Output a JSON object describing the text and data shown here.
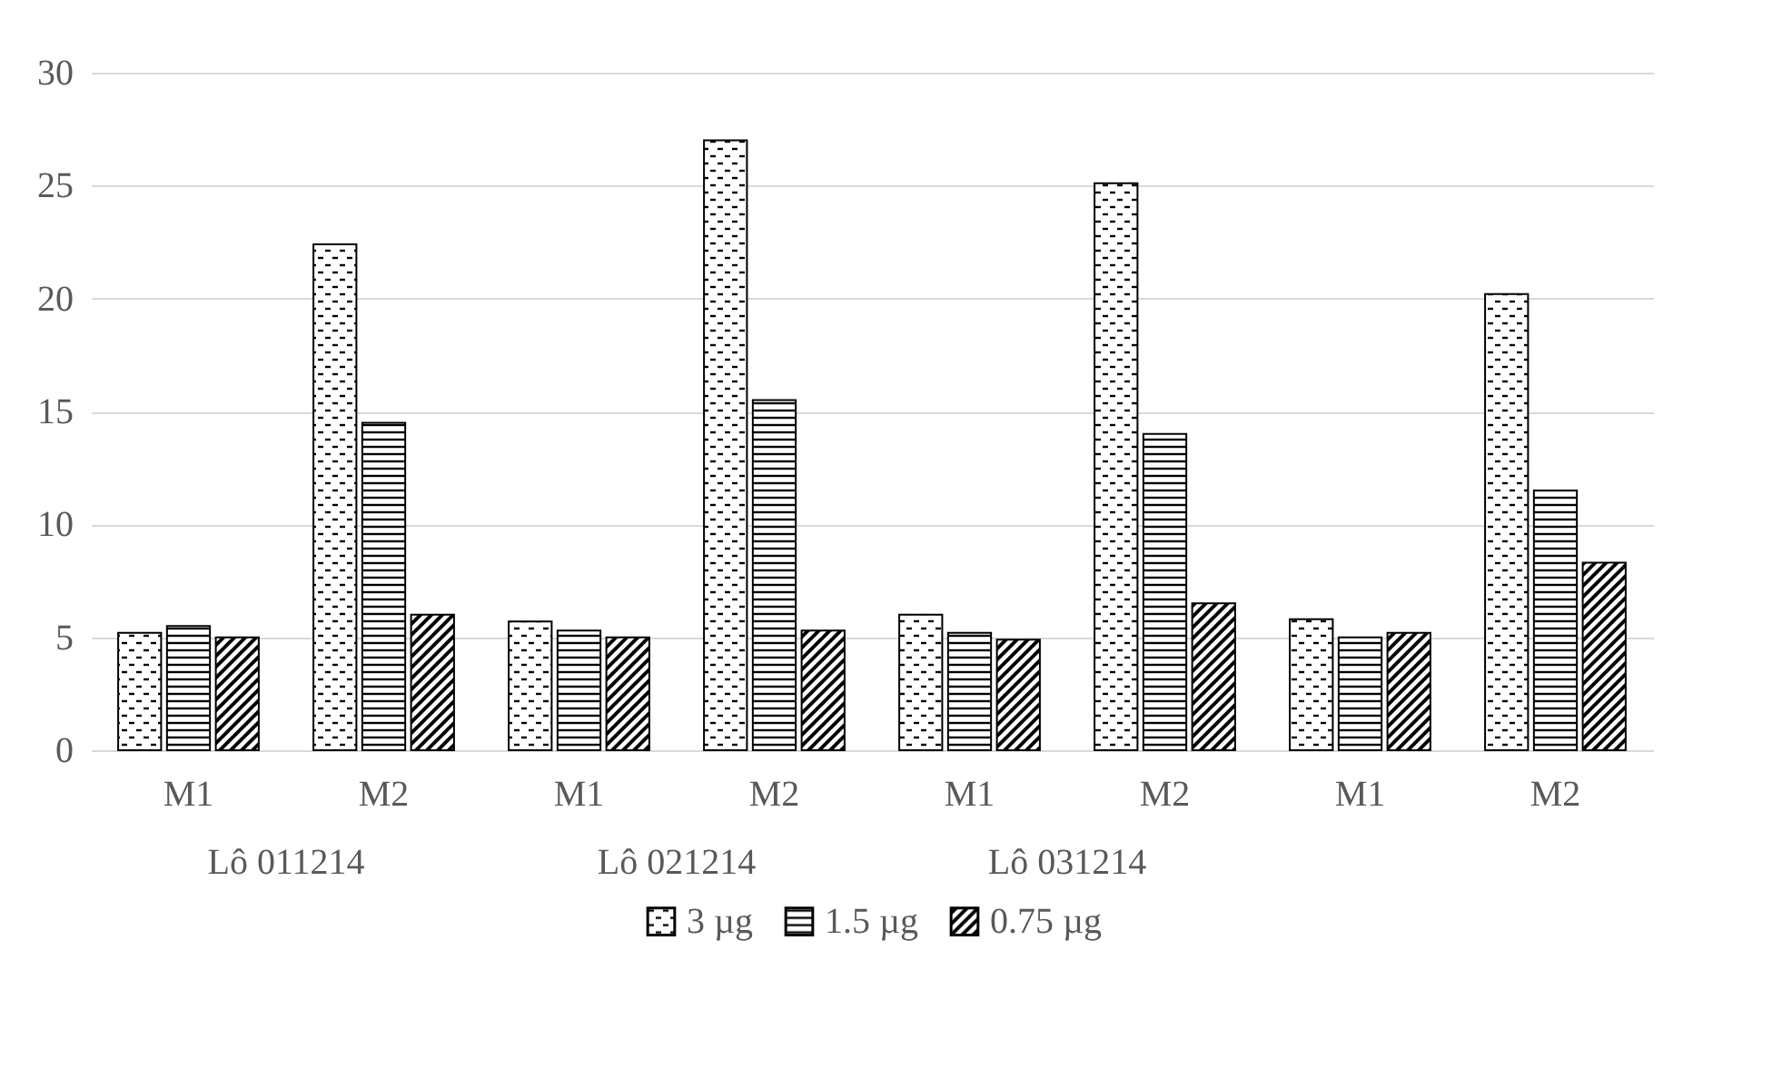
{
  "chart_data": {
    "type": "bar",
    "categories": [
      "M1",
      "M2",
      "M1",
      "M2",
      "M1",
      "M2",
      "M1",
      "M2"
    ],
    "series": [
      {
        "name": "3 µg",
        "color": "#000000",
        "values": [
          5.2,
          22.4,
          5.7,
          27.0,
          6.0,
          25.1,
          5.8,
          20.2
        ]
      },
      {
        "name": "1.5 µg",
        "color": "#000000",
        "values": [
          5.5,
          14.5,
          5.3,
          15.5,
          5.2,
          14.0,
          5.0,
          11.5
        ]
      },
      {
        "name": "0.75 µg",
        "color": "#000000",
        "values": [
          5.0,
          6.0,
          5.0,
          5.3,
          4.9,
          6.5,
          5.2,
          8.3
        ]
      }
    ],
    "annotations": [
      "Lô 011214",
      "Lô 021214",
      "Lô 031214"
    ],
    "ylim": [
      0,
      30
    ],
    "yticks": [
      0,
      5,
      10,
      15,
      20,
      25,
      30
    ],
    "grid": "y",
    "legend": "bottom"
  }
}
